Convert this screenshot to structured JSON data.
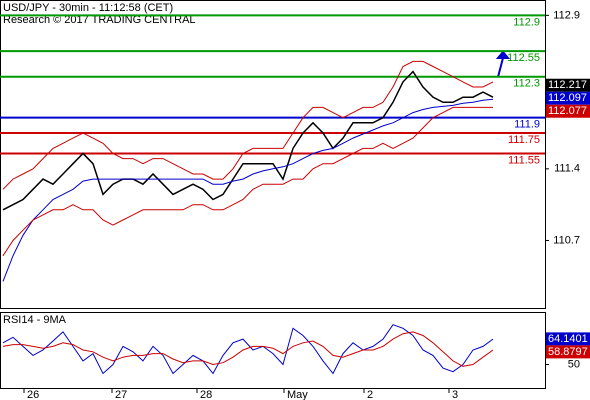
{
  "chart_data": [
    {
      "type": "line",
      "title": "USD/JPY - 30min - 11:12:58 (CET)",
      "subtitle": "Research © 2017 TRADING CENTRAL",
      "xlim": [
        -0.3,
        54.2
      ],
      "xticks": [
        {
          "value": 2.7,
          "label": "26"
        },
        {
          "value": 11.5,
          "label": "27"
        },
        {
          "value": 20,
          "label": "28"
        },
        {
          "value": 28.7,
          "label": "May"
        },
        {
          "value": 36.7,
          "label": "2"
        },
        {
          "value": 45.2,
          "label": "3"
        }
      ],
      "ylim": [
        110.04,
        113.05
      ],
      "yticks": [
        110.7,
        111.4,
        112.9
      ],
      "series": [
        {
          "color": "#000000",
          "values": [
            111.0,
            111.05,
            111.1,
            111.2,
            111.3,
            111.25,
            111.35,
            111.45,
            111.55,
            111.45,
            111.15,
            111.25,
            111.3,
            111.3,
            111.25,
            111.35,
            111.25,
            111.15,
            111.2,
            111.25,
            111.2,
            111.1,
            111.15,
            111.3,
            111.45,
            111.45,
            111.45,
            111.45,
            111.3,
            111.6,
            111.75,
            111.85,
            111.75,
            111.6,
            111.7,
            111.85,
            111.85,
            111.85,
            111.9,
            112.05,
            112.25,
            112.35,
            112.2,
            112.1,
            112.05,
            112.05,
            112.1,
            112.1,
            112.15,
            112.1
          ]
        },
        {
          "color": "#0000cc",
          "values": [
            110.3,
            110.55,
            110.75,
            110.9,
            111.0,
            111.1,
            111.15,
            111.2,
            111.28,
            111.3,
            111.3,
            111.3,
            111.3,
            111.3,
            111.3,
            111.3,
            111.3,
            111.3,
            111.3,
            111.3,
            111.3,
            111.25,
            111.25,
            111.28,
            111.3,
            111.35,
            111.38,
            111.4,
            111.42,
            111.45,
            111.5,
            111.55,
            111.58,
            111.6,
            111.65,
            111.7,
            111.74,
            111.78,
            111.82,
            111.85,
            111.9,
            111.95,
            111.98,
            112.0,
            112.01,
            112.02,
            112.04,
            112.05,
            112.07,
            112.08
          ]
        },
        {
          "color": "#cc0000",
          "values": [
            111.2,
            111.3,
            111.35,
            111.4,
            111.5,
            111.6,
            111.65,
            111.7,
            111.75,
            111.7,
            111.65,
            111.55,
            111.5,
            111.5,
            111.45,
            111.5,
            111.5,
            111.45,
            111.4,
            111.35,
            111.35,
            111.3,
            111.3,
            111.4,
            111.55,
            111.6,
            111.6,
            111.6,
            111.6,
            111.75,
            111.9,
            112.0,
            112.0,
            111.95,
            111.9,
            111.95,
            112.0,
            112.0,
            112.05,
            112.2,
            112.4,
            112.45,
            112.45,
            112.4,
            112.35,
            112.3,
            112.25,
            112.2,
            112.2,
            112.25
          ]
        },
        {
          "color": "#cc0000",
          "values": [
            110.55,
            110.7,
            110.8,
            110.9,
            110.95,
            111.0,
            111.0,
            111.05,
            111.0,
            111.0,
            110.9,
            110.85,
            110.9,
            110.95,
            111.0,
            111.0,
            111.0,
            111.0,
            111.0,
            111.05,
            111.05,
            111.0,
            111.0,
            111.05,
            111.1,
            111.2,
            111.25,
            111.25,
            111.25,
            111.3,
            111.3,
            111.4,
            111.45,
            111.45,
            111.5,
            111.55,
            111.6,
            111.6,
            111.65,
            111.6,
            111.65,
            111.7,
            111.8,
            111.9,
            111.95,
            112.0,
            112.0,
            112.0,
            112.0,
            112.0
          ]
        }
      ],
      "levels": [
        {
          "value": 112.9,
          "color": "#009900"
        },
        {
          "value": 112.55,
          "color": "#009900"
        },
        {
          "value": 112.3,
          "color": "#009900"
        },
        {
          "value": 111.9,
          "color": "#0000cc"
        },
        {
          "value": 111.75,
          "color": "#cc0000"
        },
        {
          "value": 111.55,
          "color": "#cc0000"
        }
      ],
      "price_labels": [
        {
          "value": 112.217,
          "color": "#000000"
        },
        {
          "value": 112.097,
          "color": "#0000cc"
        },
        {
          "value": 112.077,
          "color": "#cc0000"
        }
      ]
    },
    {
      "type": "line",
      "title": "RSI14 - 9MA",
      "ylim": [
        37,
        79
      ],
      "yticks": [
        50
      ],
      "series": [
        {
          "color": "#0000cc",
          "values": [
            62,
            65,
            60,
            55,
            58,
            63,
            68,
            60,
            52,
            56,
            45,
            50,
            60,
            57,
            52,
            60,
            55,
            45,
            50,
            55,
            52,
            45,
            55,
            62,
            64,
            58,
            60,
            56,
            50,
            70,
            66,
            60,
            52,
            45,
            56,
            62,
            58,
            60,
            64,
            72,
            70,
            66,
            58,
            55,
            48,
            46,
            50,
            58,
            60,
            64
          ]
        },
        {
          "color": "#cc0000",
          "values": [
            60,
            61,
            61,
            60,
            59,
            60,
            62,
            61,
            58,
            57,
            54,
            52,
            54,
            55,
            55,
            56,
            56,
            53,
            51,
            52,
            52,
            50,
            51,
            54,
            58,
            60,
            60,
            59,
            56,
            60,
            62,
            63,
            60,
            55,
            54,
            56,
            58,
            58,
            60,
            64,
            67,
            68,
            66,
            62,
            57,
            52,
            49,
            50,
            54,
            58
          ]
        }
      ],
      "price_labels": [
        {
          "value": 64.1401,
          "color": "#0000cc"
        },
        {
          "value": 58.8797,
          "color": "#cc0000"
        }
      ]
    }
  ]
}
